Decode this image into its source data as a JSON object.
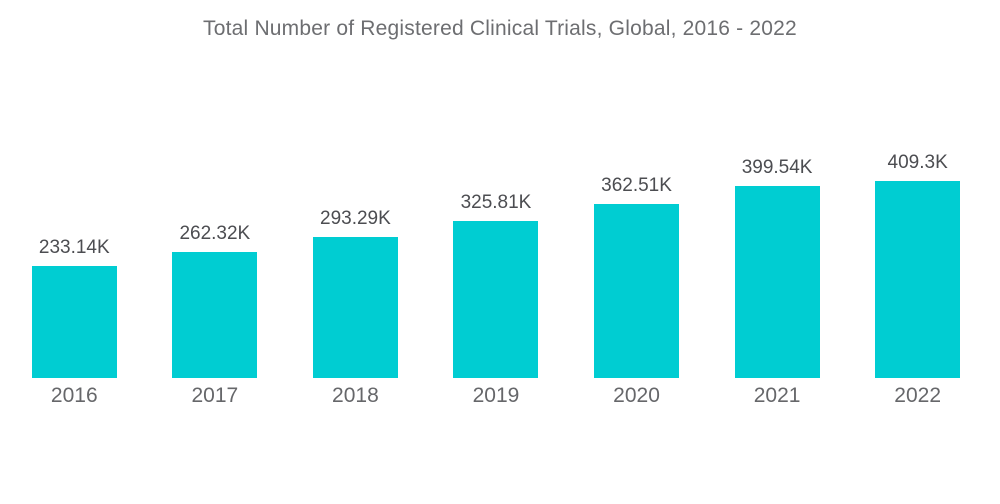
{
  "title": "Total Number of Registered Clinical Trials, Global, 2016 - 2022",
  "chart_data": {
    "type": "bar",
    "title": "Total Number of Registered Clinical Trials, Global, 2016 - 2022",
    "categories": [
      "2016",
      "2017",
      "2018",
      "2019",
      "2020",
      "2021",
      "2022"
    ],
    "values": [
      233.14,
      262.32,
      293.29,
      325.81,
      362.51,
      399.54,
      409.3
    ],
    "value_labels": [
      "233.14K",
      "262.32K",
      "293.29K",
      "325.81K",
      "362.51K",
      "399.54K",
      "409.3K"
    ],
    "unit": "K",
    "xlabel": "",
    "ylabel": "",
    "ylim": [
      0,
      409.3
    ],
    "grid": false,
    "legend": "none",
    "bar_color": "#00cdd2",
    "label_color": "#4c4d51",
    "axis_label_color": "#66676a",
    "title_color": "#6d6e71",
    "background_color": "#ffffff"
  }
}
